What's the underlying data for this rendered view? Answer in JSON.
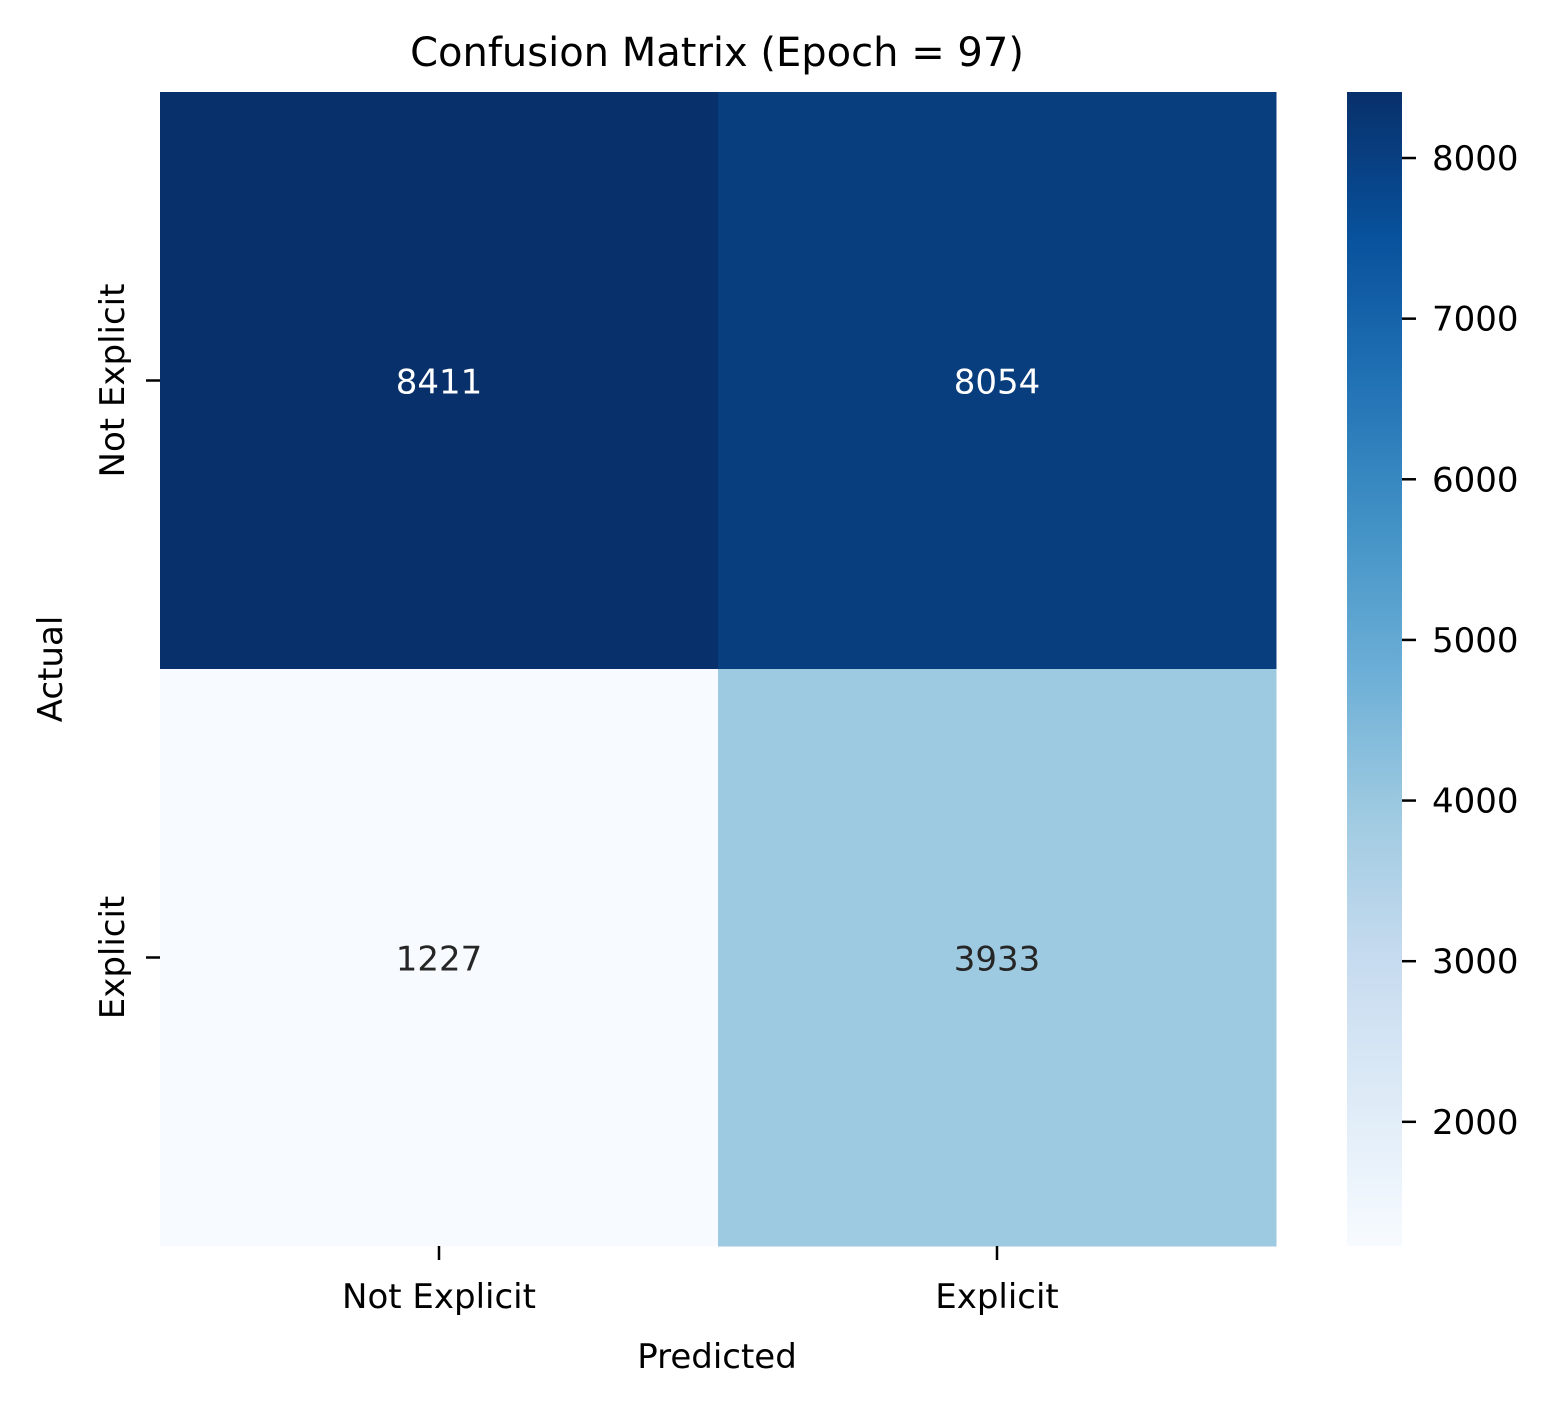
{
  "chart_data": {
    "type": "heatmap",
    "title": "Confusion Matrix (Epoch = 97)",
    "xlabel": "Predicted",
    "ylabel": "Actual",
    "x_categories": [
      "Not Explicit",
      "Explicit"
    ],
    "y_categories": [
      "Not Explicit",
      "Explicit"
    ],
    "values": [
      [
        8411,
        8054
      ],
      [
        1227,
        3933
      ]
    ],
    "colormap": "Blues",
    "colorbar": {
      "range": [
        1227,
        8411
      ],
      "ticks": [
        2000,
        3000,
        4000,
        5000,
        6000,
        7000,
        8000
      ],
      "tick_labels": [
        "2000",
        "3000",
        "4000",
        "5000",
        "6000",
        "7000",
        "8000"
      ]
    }
  }
}
